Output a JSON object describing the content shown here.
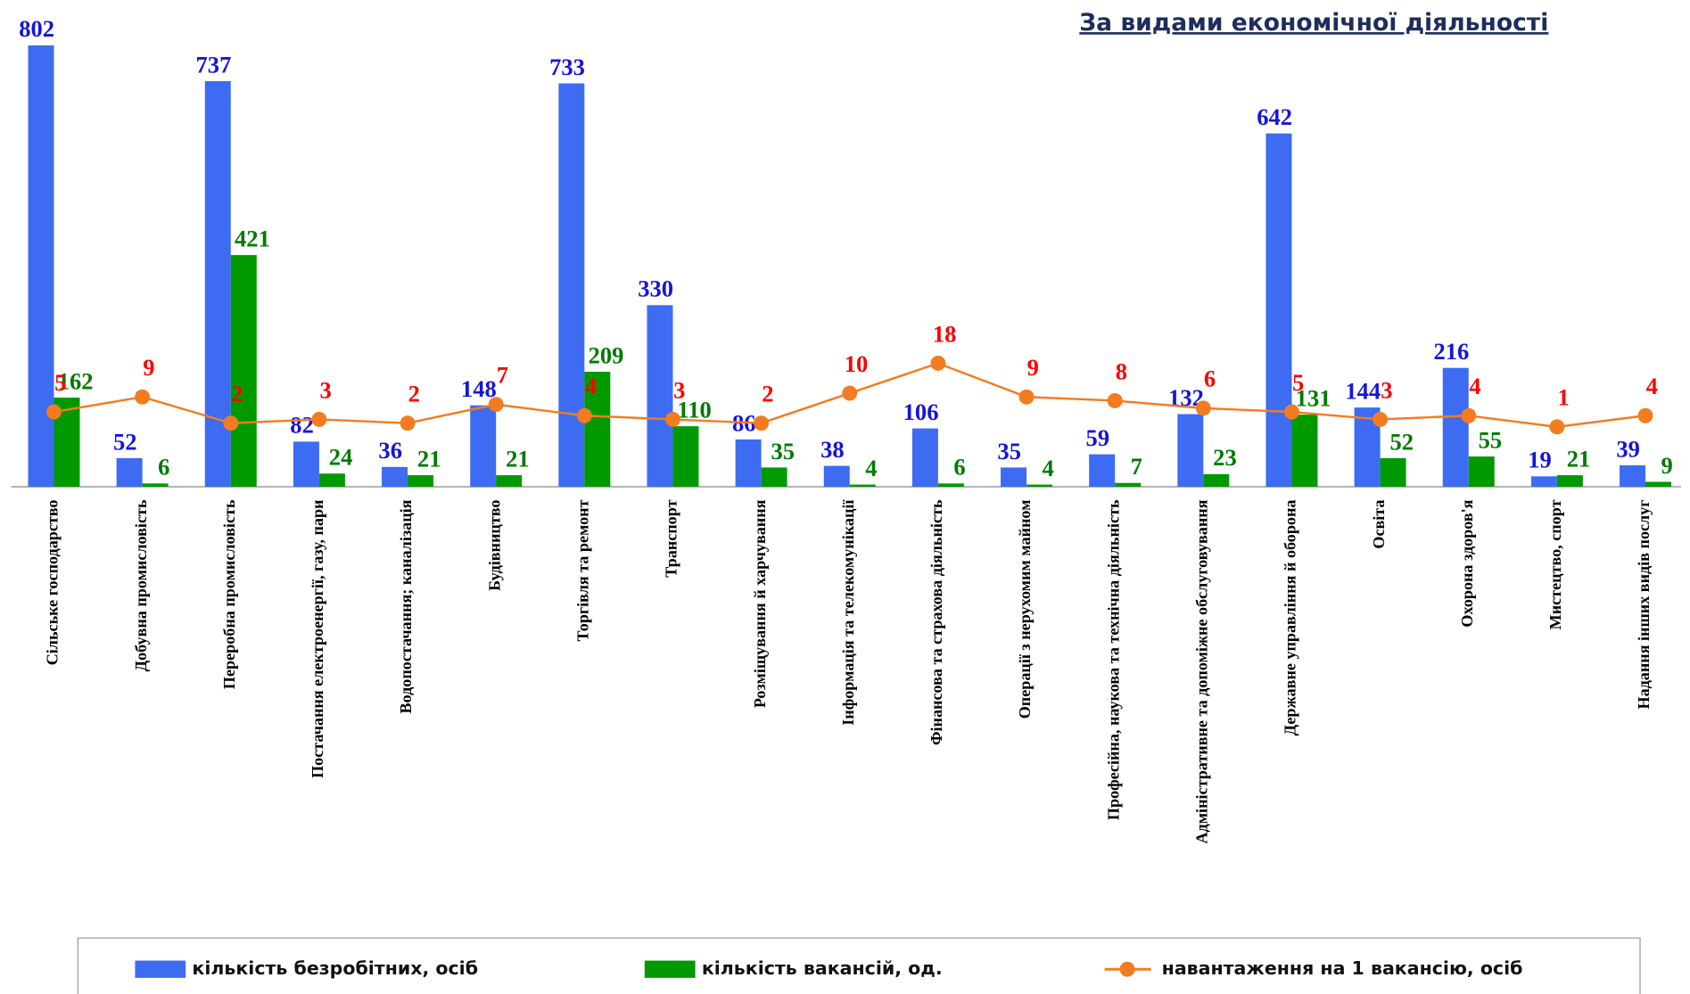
{
  "chart_data": {
    "type": "bar",
    "title": "За видами економічної діяльності",
    "categories": [
      "Сільське господарство",
      "Добувна промисловість",
      "Переробна промисловість",
      "Постачання електроенергії, газу, пари",
      "Водопостачання; каналізація",
      "Будівництво",
      "Торгівля та ремонт",
      "Транспорт",
      "Розміщування й харчування",
      "Інформація та телекомунікації",
      "Фінансова та страхова діяльність",
      "Операції з нерухомим майном",
      "Професійна, наукова та технічна діяльність",
      "Адміністративне та допоміжне обслуговування",
      "Державне управління й оборона",
      "Освіта",
      "Охорона здоров'я",
      "Мистецтво, спорт",
      "Надання інших видів послуг"
    ],
    "series": [
      {
        "name": "кількість безробітних, осіб",
        "color": "#3d6cf2",
        "label_color": "#1515d8",
        "values": [
          802,
          52,
          737,
          82,
          36,
          148,
          733,
          330,
          86,
          38,
          106,
          35,
          59,
          132,
          642,
          144,
          216,
          19,
          39
        ]
      },
      {
        "name": "кількість вакансій, од.",
        "color": "#009a00",
        "label_color": "#007a00",
        "values": [
          162,
          6,
          421,
          24,
          21,
          21,
          209,
          110,
          35,
          4,
          6,
          4,
          7,
          23,
          131,
          52,
          55,
          21,
          9
        ]
      },
      {
        "name": "навантаження на 1 вакансію, осіб",
        "type": "line",
        "axis": "y2",
        "color": "#f47b20",
        "label_color": "#ff0000",
        "values": [
          5,
          9,
          2,
          3,
          2,
          7,
          4,
          3,
          2,
          10,
          18,
          9,
          8,
          6,
          5,
          3,
          4,
          1,
          4
        ]
      }
    ],
    "ylim": [
      0,
      850
    ],
    "y2lim": [
      -15,
      110
    ],
    "legend": "bottom"
  }
}
